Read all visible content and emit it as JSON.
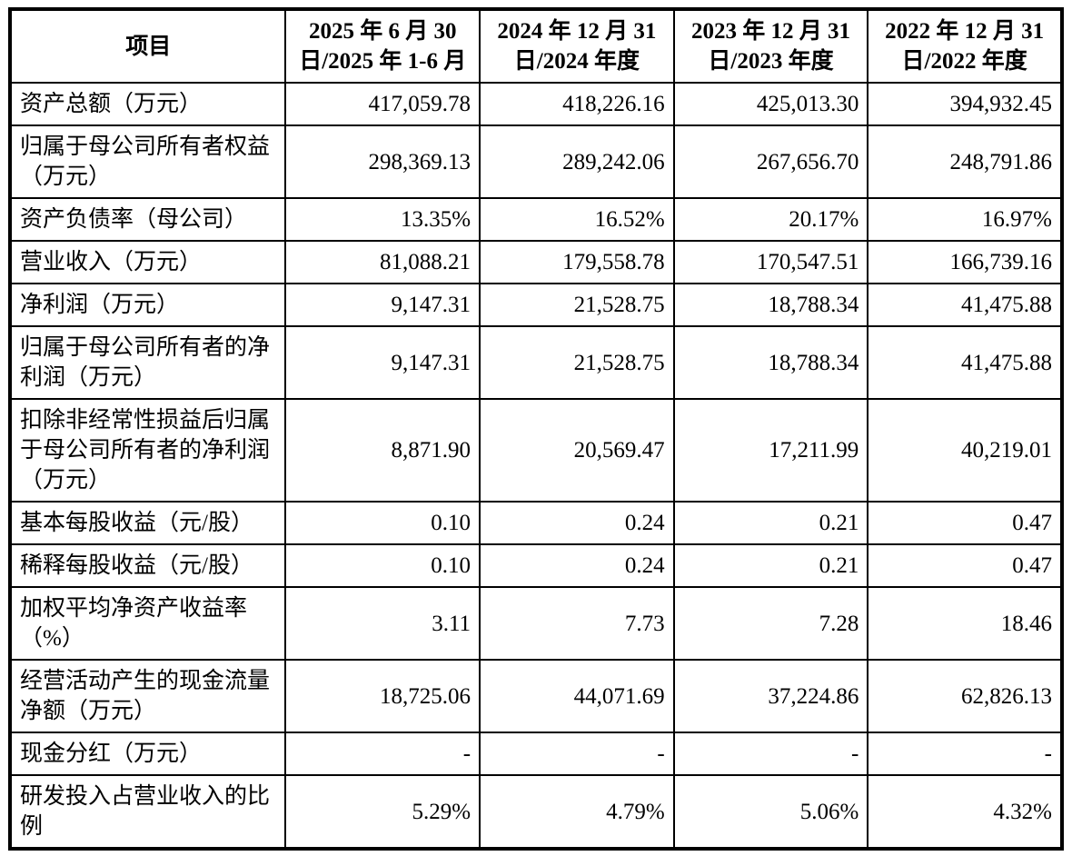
{
  "table": {
    "header": {
      "item_col": "项目",
      "period_cols": [
        {
          "line1": "2025 年 6 月 30",
          "line2": "日/2025 年 1-6 月"
        },
        {
          "line1": "2024 年 12 月 31",
          "line2": "日/2024 年度"
        },
        {
          "line1": "2023 年 12 月 31",
          "line2": "日/2023 年度"
        },
        {
          "line1": "2022 年 12 月 31",
          "line2": "日/2022 年度"
        }
      ]
    },
    "rows": [
      {
        "label": "资产总额（万元）",
        "values": [
          "417,059.78",
          "418,226.16",
          "425,013.30",
          "394,932.45"
        ]
      },
      {
        "label": "归属于母公司所有者权益（万元）",
        "values": [
          "298,369.13",
          "289,242.06",
          "267,656.70",
          "248,791.86"
        ]
      },
      {
        "label": "资产负债率（母公司）",
        "values": [
          "13.35%",
          "16.52%",
          "20.17%",
          "16.97%"
        ]
      },
      {
        "label": "营业收入（万元）",
        "values": [
          "81,088.21",
          "179,558.78",
          "170,547.51",
          "166,739.16"
        ]
      },
      {
        "label": "净利润（万元）",
        "values": [
          "9,147.31",
          "21,528.75",
          "18,788.34",
          "41,475.88"
        ]
      },
      {
        "label": "归属于母公司所有者的净利润（万元）",
        "values": [
          "9,147.31",
          "21,528.75",
          "18,788.34",
          "41,475.88"
        ]
      },
      {
        "label": "扣除非经常性损益后归属于母公司所有者的净利润（万元）",
        "values": [
          "8,871.90",
          "20,569.47",
          "17,211.99",
          "40,219.01"
        ]
      },
      {
        "label": "基本每股收益（元/股）",
        "values": [
          "0.10",
          "0.24",
          "0.21",
          "0.47"
        ]
      },
      {
        "label": "稀释每股收益（元/股）",
        "values": [
          "0.10",
          "0.24",
          "0.21",
          "0.47"
        ]
      },
      {
        "label": "加权平均净资产收益率（%）",
        "values": [
          "3.11",
          "7.73",
          "7.28",
          "18.46"
        ]
      },
      {
        "label": "经营活动产生的现金流量净额（万元）",
        "values": [
          "18,725.06",
          "44,071.69",
          "37,224.86",
          "62,826.13"
        ]
      },
      {
        "label": "现金分红（万元）",
        "values": [
          "-",
          "-",
          "-",
          "-"
        ]
      },
      {
        "label": "研发投入占营业收入的比例",
        "values": [
          "5.29%",
          "4.79%",
          "5.06%",
          "4.32%"
        ]
      }
    ]
  }
}
